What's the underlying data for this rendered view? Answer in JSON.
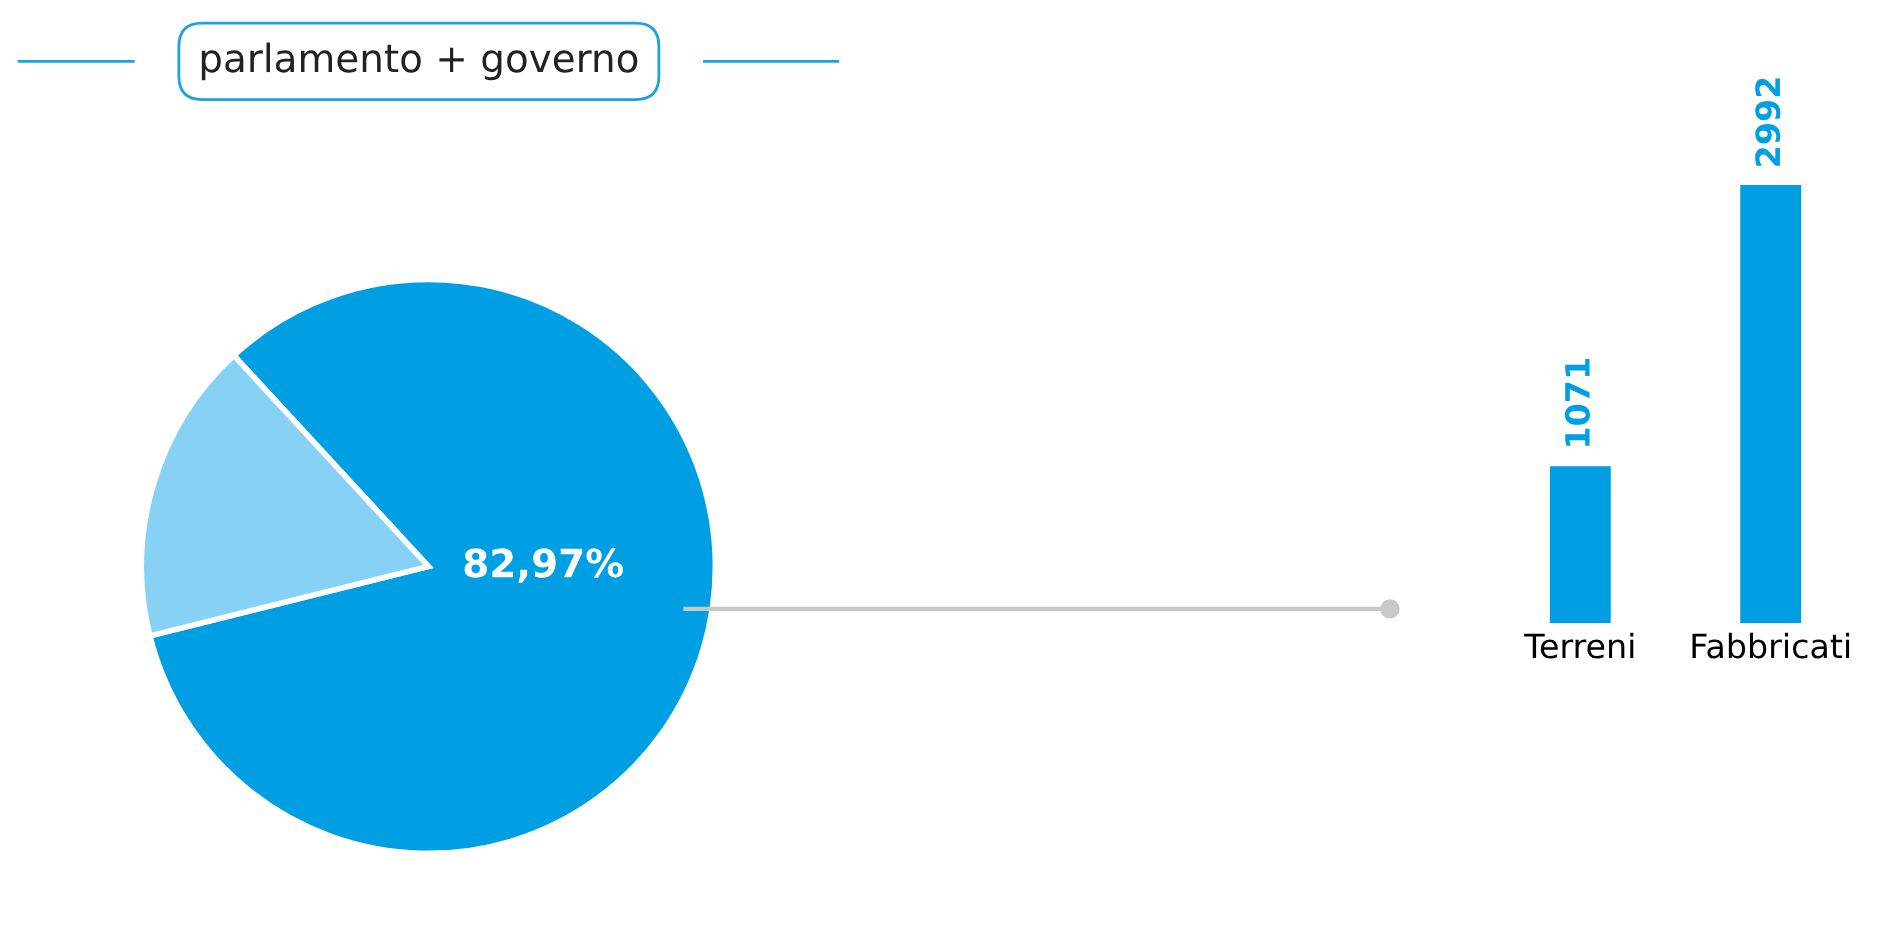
{
  "chart_data": [
    {
      "type": "pie",
      "title": "parlamento + governo",
      "categories": [
        null,
        null
      ],
      "values": [
        82.97,
        17.03
      ],
      "colors": [
        "#009fe3",
        "#87d1f5"
      ],
      "value_labels": [
        "82,97%",
        null
      ]
    },
    {
      "type": "bar",
      "categories": [
        "Terreni",
        "Fabbricati"
      ],
      "values": [
        1071,
        2992
      ],
      "color": "#009fe3",
      "data_labels": true
    }
  ]
}
